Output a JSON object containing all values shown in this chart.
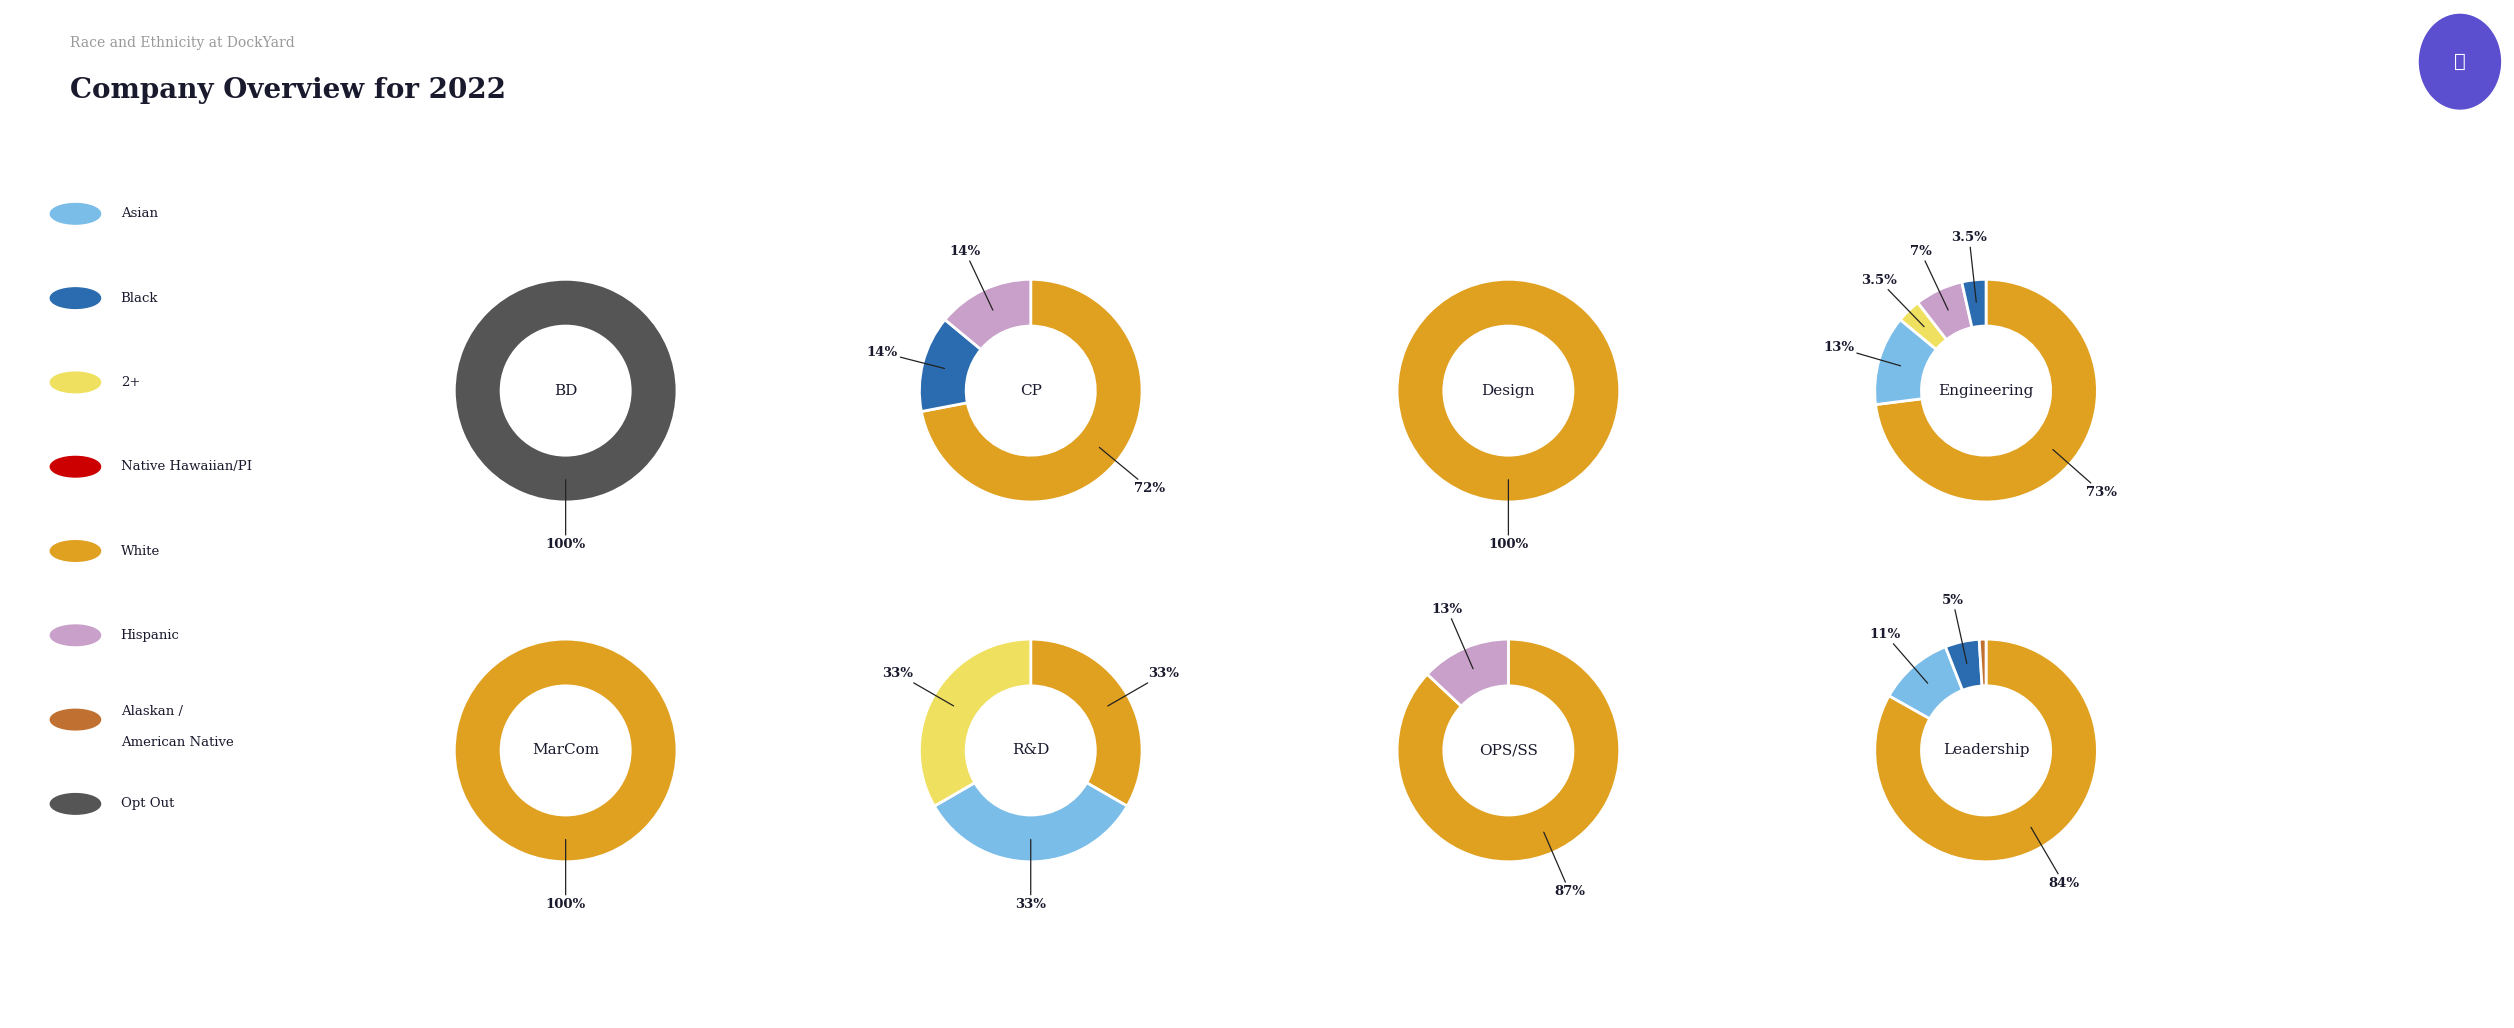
{
  "title": "Company Overview for 2022",
  "subtitle": "Race and Ethnicity at DockYard",
  "bg_color": "#ffffff",
  "header_bar_color": "#3b3a6b",
  "legend": [
    {
      "label": "Asian",
      "color": "#7abde8"
    },
    {
      "label": "Black",
      "color": "#2b6cb0"
    },
    {
      "label": "2+",
      "color": "#f0e060"
    },
    {
      "label": "Native Hawaiian/PI",
      "color": "#cc0000"
    },
    {
      "label": "White",
      "color": "#e0a020"
    },
    {
      "label": "Hispanic",
      "color": "#c9a0c9"
    },
    {
      "label": "Alaskan /\nAmerican Native",
      "color": "#c07030"
    },
    {
      "label": "Opt Out",
      "color": "#555555"
    }
  ],
  "charts": [
    {
      "title": "BD",
      "slices": [
        {
          "label": "Opt Out",
          "value": 100,
          "color": "#555555",
          "pct": "100%"
        }
      ]
    },
    {
      "title": "CP",
      "slices": [
        {
          "label": "White",
          "value": 72,
          "color": "#e0a020",
          "pct": "72%"
        },
        {
          "label": "Black",
          "value": 14,
          "color": "#2b6cb0",
          "pct": "14%"
        },
        {
          "label": "Hispanic",
          "value": 14,
          "color": "#c9a0c9",
          "pct": "14%"
        }
      ]
    },
    {
      "title": "Design",
      "slices": [
        {
          "label": "White",
          "value": 100,
          "color": "#e0a020",
          "pct": "100%"
        }
      ]
    },
    {
      "title": "Engineering",
      "slices": [
        {
          "label": "White",
          "value": 73,
          "color": "#e0a020",
          "pct": "73%"
        },
        {
          "label": "Asian",
          "value": 13,
          "color": "#7abde8",
          "pct": "13%"
        },
        {
          "label": "2+",
          "value": 3.5,
          "color": "#f0e060",
          "pct": "3.5%"
        },
        {
          "label": "Hispanic",
          "value": 7,
          "color": "#c9a0c9",
          "pct": "7%"
        },
        {
          "label": "Black",
          "value": 3.5,
          "color": "#2b6cb0",
          "pct": "3.5%"
        }
      ]
    },
    {
      "title": "MarCom",
      "slices": [
        {
          "label": "White",
          "value": 100,
          "color": "#e0a020",
          "pct": "100%"
        }
      ]
    },
    {
      "title": "R&D",
      "slices": [
        {
          "label": "White",
          "value": 33,
          "color": "#e0a020",
          "pct": "33%"
        },
        {
          "label": "Asian",
          "value": 33,
          "color": "#7abde8",
          "pct": "33%"
        },
        {
          "label": "2+",
          "value": 33,
          "color": "#f0e060",
          "pct": "33%"
        }
      ]
    },
    {
      "title": "OPS/SS",
      "slices": [
        {
          "label": "White",
          "value": 87,
          "color": "#e0a020",
          "pct": "87%"
        },
        {
          "label": "Hispanic",
          "value": 13,
          "color": "#c9a0c9",
          "pct": "13%"
        }
      ]
    },
    {
      "title": "Leadership",
      "slices": [
        {
          "label": "White",
          "value": 84,
          "color": "#e0a020",
          "pct": "84%"
        },
        {
          "label": "Asian",
          "value": 11,
          "color": "#7abde8",
          "pct": "11%"
        },
        {
          "label": "Black",
          "value": 5,
          "color": "#2b6cb0",
          "pct": "5%"
        },
        {
          "label": "Alaskan",
          "value": 1,
          "color": "#c07030",
          "pct": ""
        }
      ]
    }
  ],
  "icon_color": "#5b4fcf"
}
